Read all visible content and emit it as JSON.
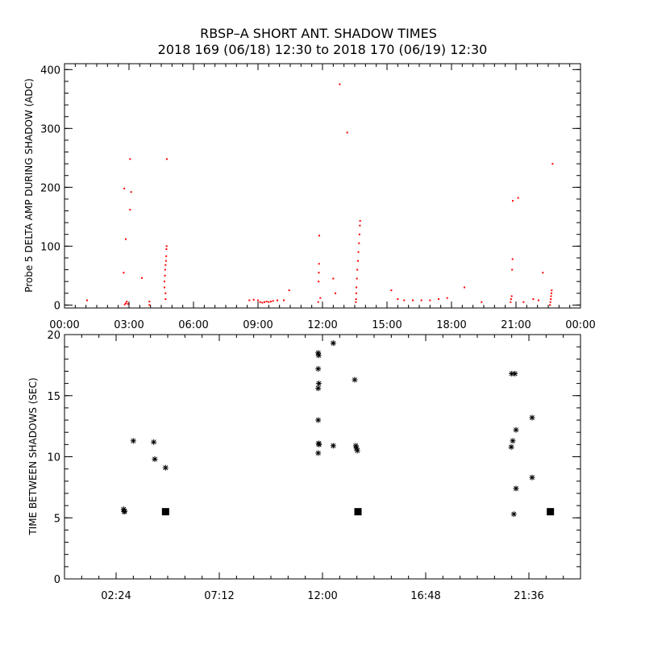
{
  "title_line1": "RBSP–A SHORT ANT. SHADOW TIMES",
  "title_line2": "2018 169 (06/18) 12:30 to 2018 170 (06/19) 12:30",
  "chart_data": [
    {
      "type": "scatter",
      "ylabel": "Probe 5 DELTA AMP DURING SHADOW (ADC)",
      "xlim_hours": [
        0,
        24
      ],
      "ylim": [
        -5,
        410
      ],
      "x_tick_labels": [
        "00:00",
        "03:00",
        "06:00",
        "09:00",
        "12:00",
        "15:00",
        "18:00",
        "21:00",
        "00:00"
      ],
      "x_tick_hours": [
        0,
        3,
        6,
        9,
        12,
        15,
        18,
        21,
        24
      ],
      "y_ticks": [
        0,
        100,
        200,
        300,
        400
      ],
      "marker": "point",
      "color": "#ff0000",
      "points": [
        [
          1.05,
          8
        ],
        [
          2.8,
          1
        ],
        [
          2.85,
          3
        ],
        [
          2.9,
          6
        ],
        [
          2.95,
          2
        ],
        [
          2.75,
          55
        ],
        [
          2.85,
          112
        ],
        [
          2.78,
          198
        ],
        [
          3.05,
          248
        ],
        [
          3.1,
          192
        ],
        [
          3.05,
          162
        ],
        [
          3.6,
          46
        ],
        [
          3.95,
          0
        ],
        [
          3.95,
          6
        ],
        [
          4.65,
          30
        ],
        [
          4.65,
          40
        ],
        [
          4.67,
          50
        ],
        [
          4.68,
          60
        ],
        [
          4.7,
          68
        ],
        [
          4.72,
          75
        ],
        [
          4.73,
          83
        ],
        [
          4.74,
          95
        ],
        [
          4.75,
          100
        ],
        [
          4.76,
          248
        ],
        [
          4.7,
          10
        ],
        [
          4.7,
          20
        ],
        [
          8.6,
          8
        ],
        [
          8.8,
          9
        ],
        [
          9.0,
          8
        ],
        [
          9.1,
          5
        ],
        [
          9.2,
          4
        ],
        [
          9.3,
          5
        ],
        [
          9.4,
          6
        ],
        [
          9.5,
          5
        ],
        [
          9.6,
          6
        ],
        [
          9.7,
          7
        ],
        [
          9.9,
          8
        ],
        [
          10.2,
          8
        ],
        [
          10.45,
          25
        ],
        [
          11.8,
          5
        ],
        [
          11.82,
          40
        ],
        [
          11.83,
          55
        ],
        [
          11.84,
          70
        ],
        [
          11.85,
          118
        ],
        [
          11.9,
          12
        ],
        [
          12.5,
          45
        ],
        [
          12.6,
          20
        ],
        [
          12.8,
          375
        ],
        [
          13.15,
          293
        ],
        [
          13.55,
          5
        ],
        [
          13.56,
          10
        ],
        [
          13.57,
          20
        ],
        [
          13.58,
          30
        ],
        [
          13.6,
          45
        ],
        [
          13.62,
          60
        ],
        [
          13.65,
          75
        ],
        [
          13.67,
          90
        ],
        [
          13.7,
          105
        ],
        [
          13.72,
          120
        ],
        [
          13.74,
          135
        ],
        [
          13.75,
          143
        ],
        [
          15.2,
          25
        ],
        [
          15.5,
          10
        ],
        [
          15.8,
          8
        ],
        [
          16.2,
          8
        ],
        [
          16.6,
          8
        ],
        [
          17.0,
          8
        ],
        [
          17.4,
          10
        ],
        [
          17.8,
          12
        ],
        [
          18.6,
          30
        ],
        [
          19.4,
          5
        ],
        [
          20.75,
          5
        ],
        [
          20.77,
          10
        ],
        [
          20.8,
          15
        ],
        [
          20.82,
          60
        ],
        [
          20.84,
          78
        ],
        [
          20.85,
          177
        ],
        [
          21.1,
          182
        ],
        [
          21.35,
          5
        ],
        [
          21.8,
          10
        ],
        [
          22.05,
          8
        ],
        [
          22.25,
          55
        ],
        [
          22.58,
          0
        ],
        [
          22.6,
          5
        ],
        [
          22.62,
          10
        ],
        [
          22.63,
          15
        ],
        [
          22.65,
          20
        ],
        [
          22.66,
          25
        ],
        [
          22.7,
          240
        ]
      ]
    },
    {
      "type": "scatter",
      "ylabel": "TIME BETWEEN SHADOWS (SEC)",
      "xlim_hours": [
        0,
        24
      ],
      "ylim": [
        0,
        20
      ],
      "x_tick_labels": [
        "02:24",
        "07:12",
        "12:00",
        "16:48",
        "21:36"
      ],
      "x_tick_hours": [
        2.4,
        7.2,
        12.0,
        16.8,
        21.6
      ],
      "y_ticks": [
        0,
        5,
        10,
        15,
        20
      ],
      "series": [
        {
          "marker": "asterisk",
          "color": "#000000",
          "points": [
            [
              2.75,
              5.7
            ],
            [
              2.77,
              5.5
            ],
            [
              2.8,
              5.55
            ],
            [
              3.2,
              11.3
            ],
            [
              4.15,
              11.2
            ],
            [
              4.2,
              9.8
            ],
            [
              4.7,
              9.1
            ],
            [
              11.8,
              18.5
            ],
            [
              11.82,
              18.3
            ],
            [
              11.8,
              17.2
            ],
            [
              11.83,
              16.0
            ],
            [
              11.8,
              15.6
            ],
            [
              11.8,
              13.0
            ],
            [
              11.82,
              11.1
            ],
            [
              11.84,
              11.0
            ],
            [
              11.8,
              10.3
            ],
            [
              12.5,
              19.3
            ],
            [
              12.5,
              10.9
            ],
            [
              13.5,
              16.3
            ],
            [
              13.55,
              10.9
            ],
            [
              13.58,
              10.7
            ],
            [
              13.62,
              10.5
            ],
            [
              20.8,
              16.8
            ],
            [
              20.95,
              16.8
            ],
            [
              20.85,
              11.3
            ],
            [
              20.78,
              10.8
            ],
            [
              21.0,
              12.2
            ],
            [
              21.0,
              7.4
            ],
            [
              20.9,
              5.3
            ],
            [
              21.75,
              13.2
            ],
            [
              21.75,
              8.3
            ]
          ]
        },
        {
          "marker": "square",
          "color": "#000000",
          "points": [
            [
              4.7,
              5.5
            ],
            [
              13.65,
              5.5
            ],
            [
              22.6,
              5.5
            ]
          ]
        }
      ]
    }
  ]
}
